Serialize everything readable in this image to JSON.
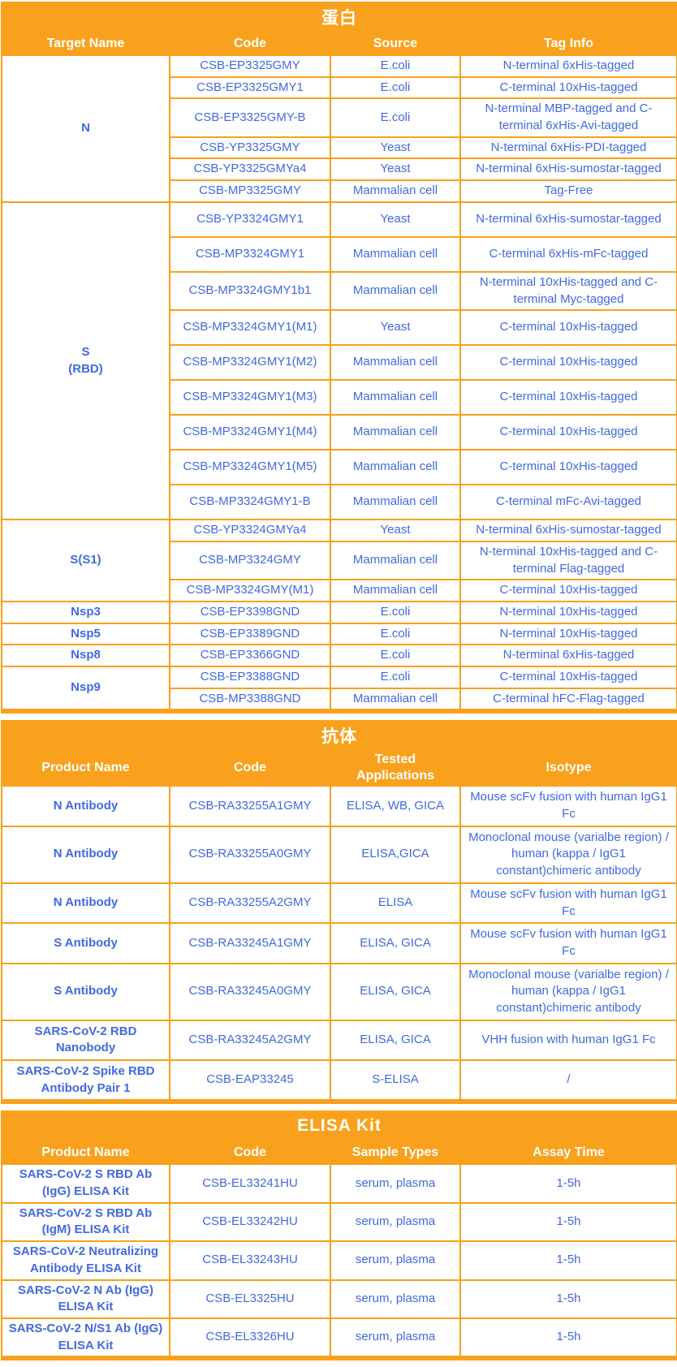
{
  "colors": {
    "orange": "#F9A11C",
    "text_blue": "#4169E1",
    "header_text": "#FFFFFF"
  },
  "protein_table": {
    "title": "蛋白",
    "columns": [
      "Target Name",
      "Code",
      "Source",
      "Tag Info"
    ],
    "groups": [
      {
        "name": "N",
        "tall": false,
        "rows": [
          [
            "CSB-EP3325GMY",
            "E.coli",
            "N-terminal 6xHis-tagged"
          ],
          [
            "CSB-EP3325GMY1",
            "E.coli",
            "C-terminal 10xHis-tagged"
          ],
          [
            "CSB-EP3325GMY-B",
            "E.coli",
            "N-terminal MBP-tagged and C-terminal 6xHis-Avi-tagged"
          ],
          [
            "CSB-YP3325GMY",
            "Yeast",
            "N-terminal 6xHis-PDI-tagged"
          ],
          [
            "CSB-YP3325GMYa4",
            "Yeast",
            "N-terminal 6xHis-sumostar-tagged"
          ],
          [
            "CSB-MP3325GMY",
            "Mammalian cell",
            "Tag-Free"
          ]
        ]
      },
      {
        "name": "S\n(RBD)",
        "tall": true,
        "rows": [
          [
            "CSB-YP3324GMY1",
            "Yeast",
            "N-terminal 6xHis-sumostar-tagged"
          ],
          [
            "CSB-MP3324GMY1",
            "Mammalian cell",
            "C-terminal 6xHis-mFc-tagged"
          ],
          [
            "CSB-MP3324GMY1b1",
            "Mammalian cell",
            "N-terminal 10xHis-tagged and C-terminal Myc-tagged"
          ],
          [
            "CSB-MP3324GMY1(M1)",
            "Yeast",
            "C-terminal 10xHis-tagged"
          ],
          [
            "CSB-MP3324GMY1(M2)",
            "Mammalian cell",
            "C-terminal 10xHis-tagged"
          ],
          [
            "CSB-MP3324GMY1(M3)",
            "Mammalian cell",
            "C-terminal 10xHis-tagged"
          ],
          [
            "CSB-MP3324GMY1(M4)",
            "Mammalian cell",
            "C-terminal 10xHis-tagged"
          ],
          [
            "CSB-MP3324GMY1(M5)",
            "Mammalian cell",
            "C-terminal 10xHis-tagged"
          ],
          [
            "CSB-MP3324GMY1-B",
            "Mammalian cell",
            "C-terminal mFc-Avi-tagged"
          ]
        ]
      },
      {
        "name": "S(S1)",
        "tall": false,
        "rows": [
          [
            "CSB-YP3324GMYa4",
            "Yeast",
            "N-terminal 6xHis-sumostar-tagged"
          ],
          [
            "CSB-MP3324GMY",
            "Mammalian cell",
            "N-terminal 10xHis-tagged and C-terminal Flag-tagged"
          ],
          [
            "CSB-MP3324GMY(M1)",
            "Mammalian cell",
            "C-terminal 10xHis-tagged"
          ]
        ]
      },
      {
        "name": "Nsp3",
        "tall": false,
        "rows": [
          [
            "CSB-EP3398GND",
            "E.coli",
            "N-terminal 10xHis-tagged"
          ]
        ]
      },
      {
        "name": "Nsp5",
        "tall": false,
        "rows": [
          [
            "CSB-EP3389GND",
            "E.coli",
            "N-terminal 10xHis-tagged"
          ]
        ]
      },
      {
        "name": "Nsp8",
        "tall": false,
        "rows": [
          [
            "CSB-EP3366GND",
            "E.coli",
            "N-terminal 6xHis-tagged"
          ]
        ]
      },
      {
        "name": "Nsp9",
        "tall": false,
        "rows": [
          [
            "CSB-EP3388GND",
            "E.coli",
            "C-terminal 10xHis-tagged"
          ],
          [
            "CSB-MP3388GND",
            "Mammalian cell",
            "C-terminal hFC-Flag-tagged"
          ]
        ]
      }
    ]
  },
  "antibody_table": {
    "title": "抗体",
    "columns": [
      "Product Name",
      "Code",
      "Tested Applications",
      "Isotype"
    ],
    "rows": [
      [
        "N Antibody",
        "CSB-RA33255A1GMY",
        "ELISA, WB, GICA",
        "Mouse scFv fusion with human IgG1 Fc"
      ],
      [
        "N Antibody",
        "CSB-RA33255A0GMY",
        "ELISA,GICA",
        "Monoclonal mouse (varialbe region) / human (kappa / IgG1 constant)chimeric antibody"
      ],
      [
        "N Antibody",
        "CSB-RA33255A2GMY",
        "ELISA",
        "Mouse scFv fusion with human IgG1 Fc"
      ],
      [
        "S Antibody",
        "CSB-RA33245A1GMY",
        "ELISA, GICA",
        "Mouse scFv fusion with human IgG1 Fc"
      ],
      [
        "S Antibody",
        "CSB-RA33245A0GMY",
        "ELISA, GICA",
        "Monoclonal mouse (varialbe region) / human (kappa / IgG1 constant)chimeric antibody"
      ],
      [
        "SARS-CoV-2 RBD Nanobody",
        "CSB-RA33245A2GMY",
        "ELISA, GICA",
        "VHH fusion with human IgG1 Fc"
      ],
      [
        "SARS-CoV-2 Spike RBD Antibody Pair 1",
        "CSB-EAP33245",
        "S-ELISA",
        "/"
      ]
    ]
  },
  "elisa_table": {
    "title": "ELISA Kit",
    "columns": [
      "Product Name",
      "Code",
      "Sample Types",
      "Assay Time"
    ],
    "rows": [
      [
        "SARS-CoV-2 S RBD Ab (IgG) ELISA Kit",
        "CSB-EL33241HU",
        "serum, plasma",
        "1-5h"
      ],
      [
        "SARS-CoV-2 S RBD Ab (IgM)  ELISA Kit",
        "CSB-EL33242HU",
        "serum, plasma",
        "1-5h"
      ],
      [
        "SARS-CoV-2 Neutralizing Antibody  ELISA Kit",
        "CSB-EL33243HU",
        "serum, plasma",
        "1-5h"
      ],
      [
        "SARS-CoV-2 N Ab (IgG) ELISA Kit",
        "CSB-EL3325HU",
        "serum, plasma",
        "1-5h"
      ],
      [
        "SARS-CoV-2 N/S1 Ab (IgG) ELISA Kit",
        "CSB-EL3326HU",
        "serum, plasma",
        "1-5h"
      ]
    ]
  }
}
